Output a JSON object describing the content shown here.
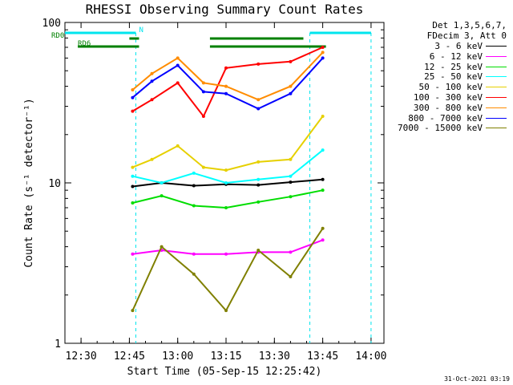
{
  "chart_data": {
    "type": "line",
    "title": "RHESSI Observing Summary Count Rates",
    "xlabel": "Start Time (05-Sep-15 12:25:42)",
    "ylabel": "Count Rate (s⁻¹ detector⁻¹)",
    "yscale": "log",
    "ylim": [
      1,
      100
    ],
    "xlim_minutes_after_1225": [
      0,
      99
    ],
    "x_ticks": [
      "12:30",
      "12:45",
      "13:00",
      "13:15",
      "13:30",
      "13:45",
      "14:00"
    ],
    "y_ticks": [
      "1",
      "10",
      "100"
    ],
    "legend_header": [
      "Det 1,3,5,6,7,",
      "FDecim 3, Att 0"
    ],
    "footer_timestamp": "31-Oct-2021 03:19",
    "flags": [
      {
        "name": "N",
        "color": "#00e5ee",
        "intervals": [
          [
            "12:25",
            "12:47"
          ],
          [
            "13:41",
            "14:00"
          ]
        ]
      },
      {
        "name": "RD0",
        "color": "#008000",
        "intervals": [
          [
            "12:45",
            "12:48"
          ],
          [
            "13:10",
            "13:39"
          ]
        ]
      },
      {
        "name": "RD6",
        "color": "#008000",
        "intervals": [
          [
            "12:29",
            "12:48"
          ],
          [
            "13:10",
            "13:46"
          ]
        ]
      }
    ],
    "series": [
      {
        "name": "3 - 6 keV",
        "color": "#000000",
        "time": [
          "12:46",
          "12:55",
          "13:05",
          "13:15",
          "13:25",
          "13:35",
          "13:45"
        ],
        "values": [
          9.5,
          10,
          9.6,
          9.8,
          9.7,
          10.1,
          10.5
        ]
      },
      {
        "name": "6 - 12 keV",
        "color": "#ff00ff",
        "time": [
          "12:46",
          "12:55",
          "13:05",
          "13:15",
          "13:25",
          "13:35",
          "13:45"
        ],
        "values": [
          3.6,
          3.8,
          3.6,
          3.6,
          3.7,
          3.7,
          4.4
        ]
      },
      {
        "name": "12 - 25 keV",
        "color": "#00dd00",
        "time": [
          "12:46",
          "12:55",
          "13:05",
          "13:15",
          "13:25",
          "13:35",
          "13:45"
        ],
        "values": [
          7.5,
          8.3,
          7.2,
          7.0,
          7.6,
          8.2,
          9.0
        ]
      },
      {
        "name": "25 - 50 keV",
        "color": "#00ffff",
        "time": [
          "12:46",
          "12:55",
          "13:05",
          "13:15",
          "13:25",
          "13:35",
          "13:45"
        ],
        "values": [
          11,
          10,
          11.5,
          10,
          10.5,
          11,
          16
        ]
      },
      {
        "name": "50 - 100 keV",
        "color": "#e6d000",
        "time": [
          "12:46",
          "12:52",
          "13:00",
          "13:08",
          "13:15",
          "13:25",
          "13:35",
          "13:45"
        ],
        "values": [
          12.5,
          14,
          17,
          12.5,
          12,
          13.5,
          14,
          26
        ]
      },
      {
        "name": "100 - 300 keV",
        "color": "#ff0000",
        "time": [
          "12:46",
          "12:52",
          "13:00",
          "13:08",
          "13:15",
          "13:25",
          "13:35",
          "13:45"
        ],
        "values": [
          28,
          33,
          42,
          26,
          52,
          55,
          57,
          70
        ]
      },
      {
        "name": "300 - 800 keV",
        "color": "#ff8c00",
        "time": [
          "12:46",
          "12:52",
          "13:00",
          "13:08",
          "13:15",
          "13:25",
          "13:35",
          "13:45"
        ],
        "values": [
          38,
          48,
          60,
          42,
          40,
          33,
          40,
          65
        ]
      },
      {
        "name": "800 - 7000 keV",
        "color": "#0000ff",
        "time": [
          "12:46",
          "12:52",
          "13:00",
          "13:08",
          "13:15",
          "13:25",
          "13:35",
          "13:45"
        ],
        "values": [
          34,
          43,
          54,
          37,
          36,
          29,
          36,
          60
        ]
      },
      {
        "name": "7000 - 15000 keV",
        "color": "#808000",
        "time": [
          "12:46",
          "12:55",
          "13:05",
          "13:15",
          "13:25",
          "13:35",
          "13:45"
        ],
        "values": [
          1.6,
          4.0,
          2.7,
          1.6,
          3.8,
          2.6,
          5.2
        ]
      }
    ]
  }
}
